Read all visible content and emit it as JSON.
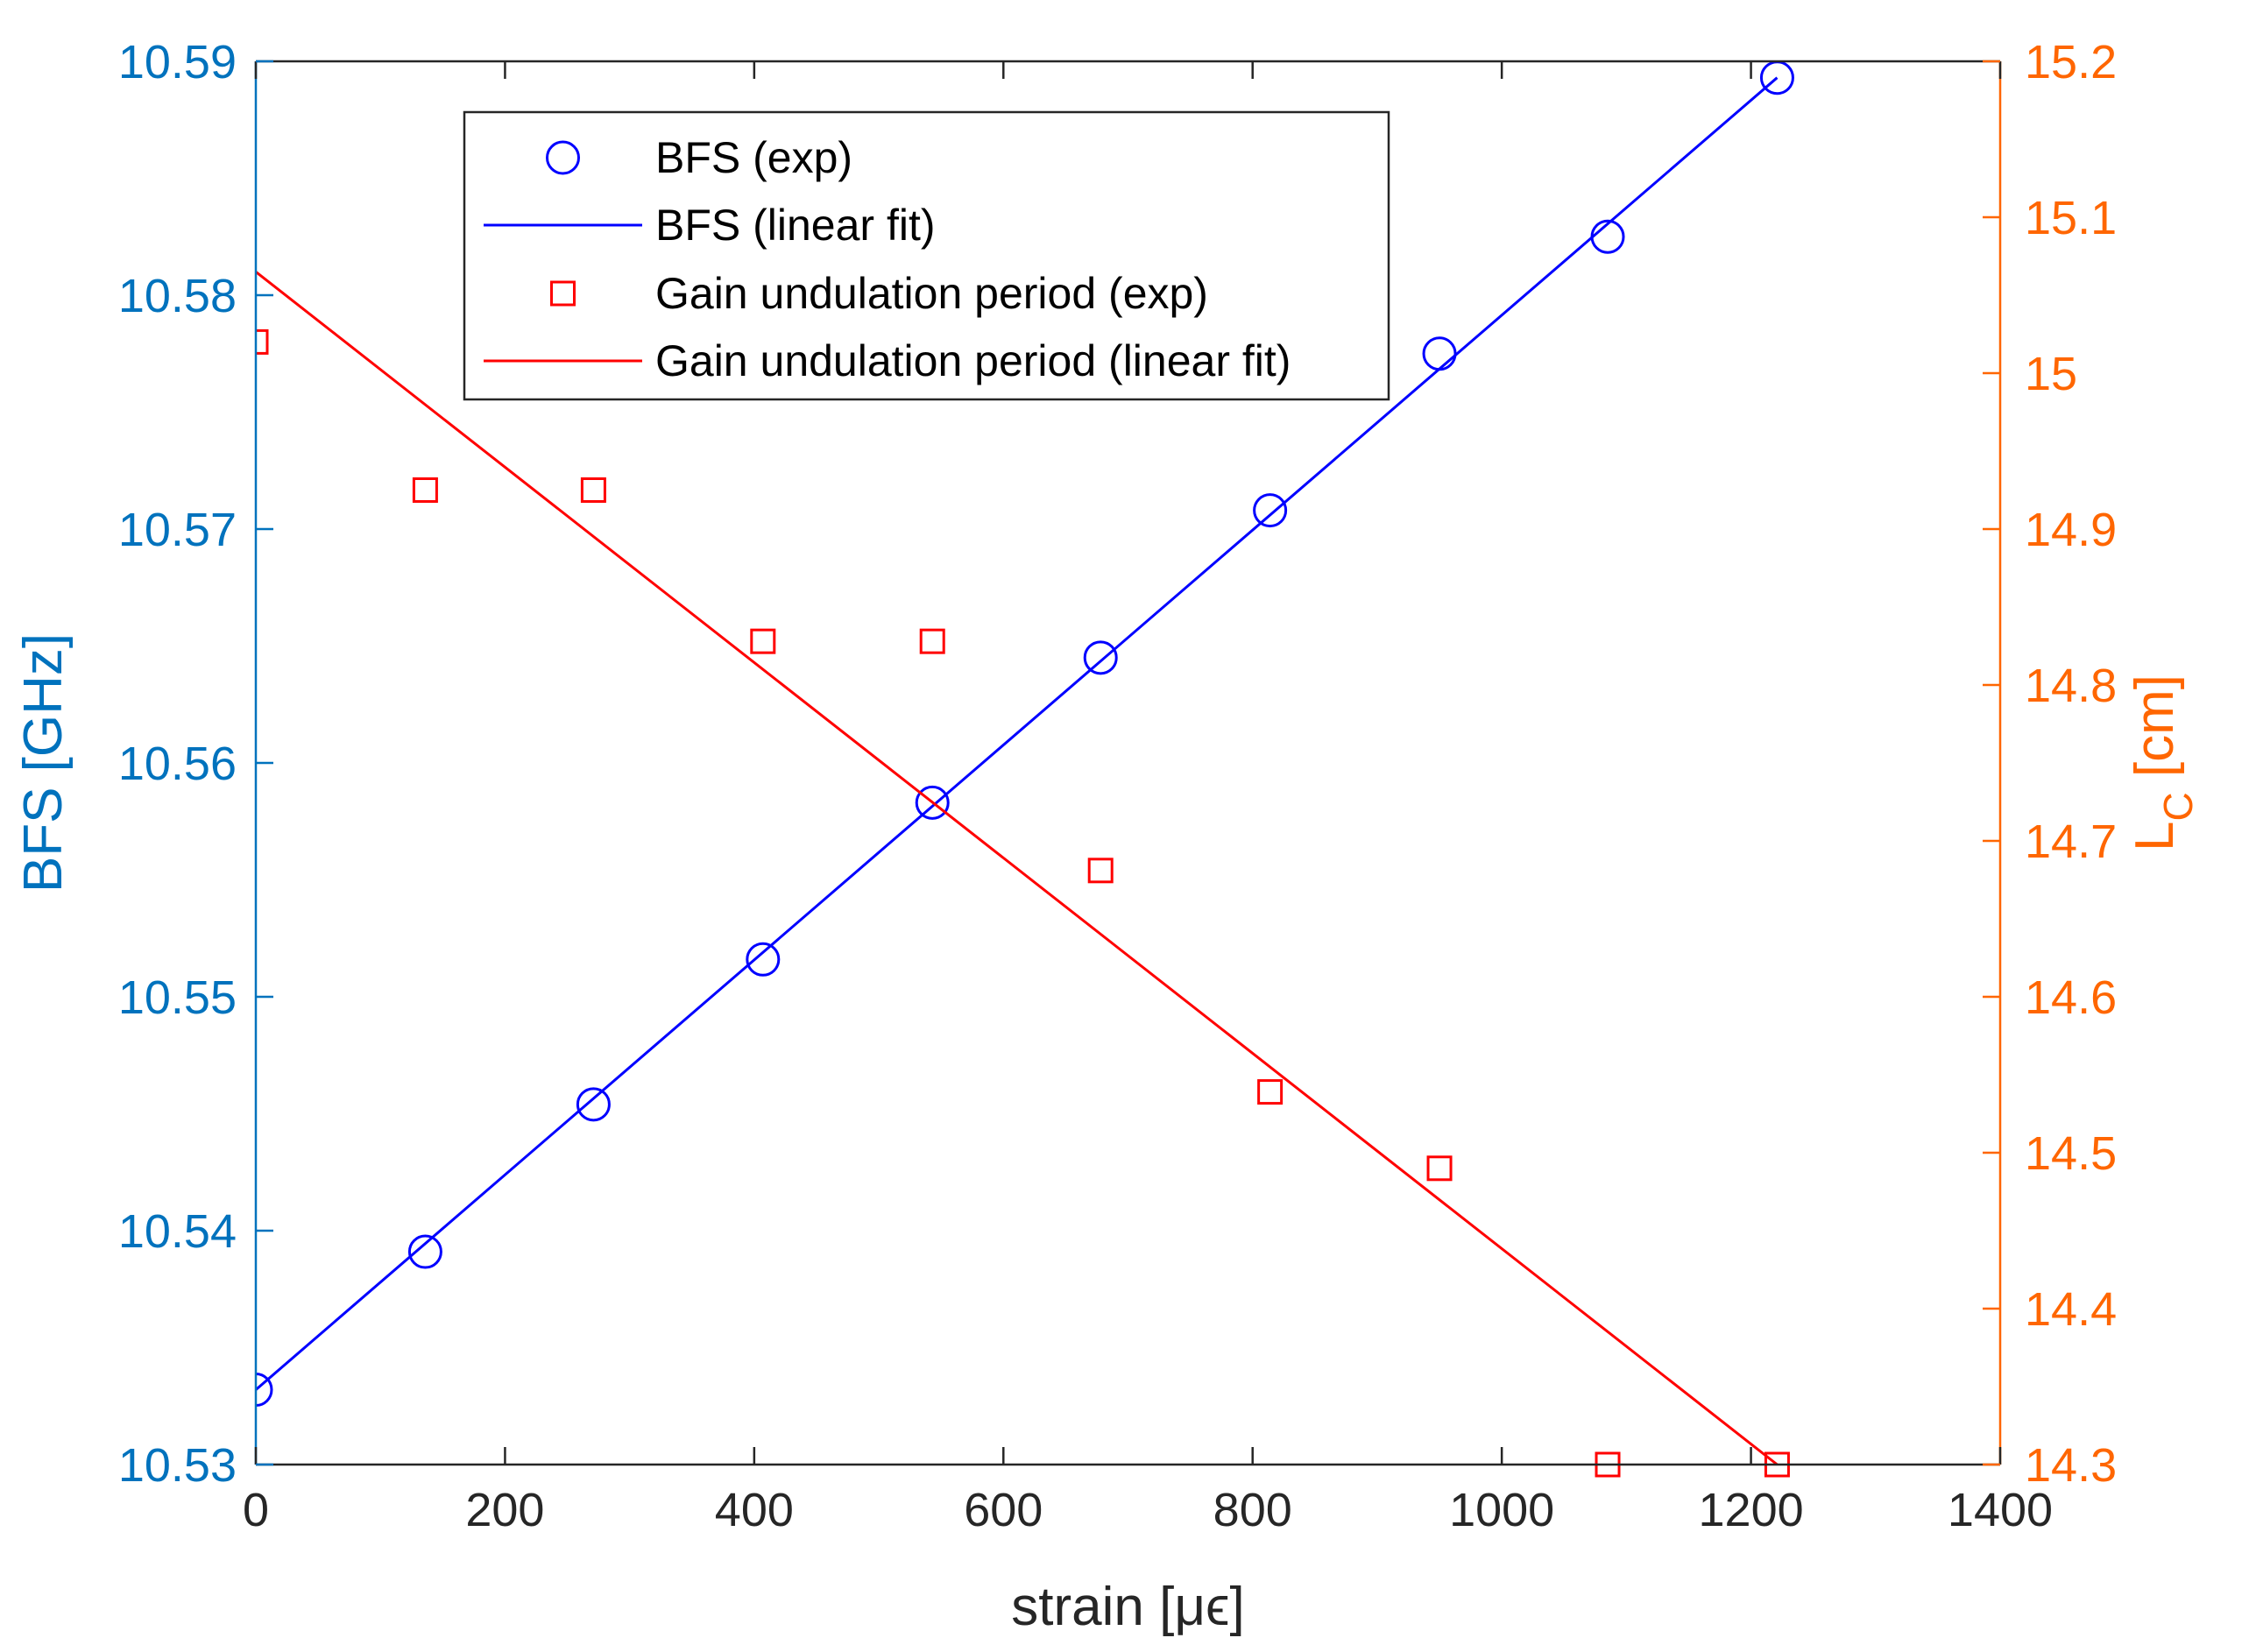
{
  "chart_data": {
    "type": "scatter",
    "xlabel": "strain  [μϵ]",
    "ylabel_left": "BFS [GHz]",
    "ylabel_right_main": "L",
    "ylabel_right_sub": "C",
    "ylabel_right_unit": " [cm]",
    "xlim": [
      0,
      1400
    ],
    "ylim_left": [
      10.53,
      10.59
    ],
    "ylim_right": [
      14.3,
      15.2
    ],
    "x_ticks": [
      "0",
      "200",
      "400",
      "600",
      "800",
      "1000",
      "1200",
      "1400"
    ],
    "y_left_ticks": [
      "10.53",
      "10.54",
      "10.55",
      "10.56",
      "10.57",
      "10.58",
      "10.59"
    ],
    "y_right_ticks": [
      "14.3",
      "14.4",
      "14.5",
      "14.6",
      "14.7",
      "14.8",
      "14.9",
      "15",
      "15.1",
      "15.2"
    ],
    "colors": {
      "left_axis": "#0072BD",
      "right_axis": "#FF6600",
      "bfs": "#0000FF",
      "gain": "#FF0000"
    },
    "grid": false,
    "legend_position": "top-left",
    "series": [
      {
        "name": "BFS (exp)",
        "axis": "left",
        "marker": "circle",
        "x": [
          0,
          136,
          271,
          407,
          543,
          678,
          814,
          950,
          1085,
          1221
        ],
        "y": [
          10.5332,
          10.5391,
          10.5454,
          10.5516,
          10.5583,
          10.5645,
          10.5708,
          10.5775,
          10.5825,
          10.5893
        ]
      },
      {
        "name": "BFS (linear fit)",
        "axis": "left",
        "line": true,
        "x": [
          0,
          1221
        ],
        "y": [
          10.5332,
          10.5893
        ]
      },
      {
        "name": "Gain undulation period (exp)",
        "axis": "right",
        "marker": "square",
        "x": [
          0,
          136,
          271,
          407,
          543,
          678,
          814,
          950,
          1085,
          1221
        ],
        "y": [
          15.02,
          14.925,
          14.925,
          14.828,
          14.828,
          14.681,
          14.539,
          14.49,
          14.3,
          14.3
        ]
      },
      {
        "name": "Gain undulation period (linear fit)",
        "axis": "right",
        "line": true,
        "x": [
          0,
          1221
        ],
        "y": [
          15.065,
          14.3
        ]
      }
    ]
  }
}
